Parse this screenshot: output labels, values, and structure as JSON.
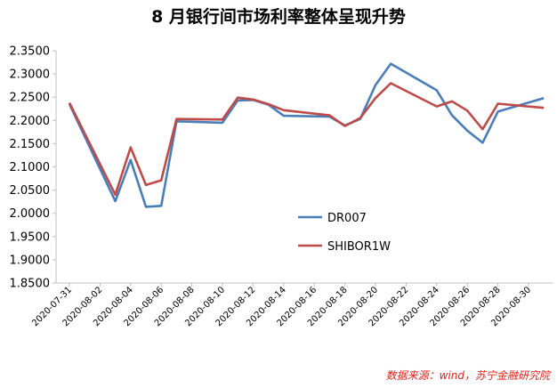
{
  "chart_data": {
    "type": "line",
    "title": "8 月银行间市场利率整体呈现升势",
    "source_note": "数据来源：wind，苏宁金融研究院",
    "x": [
      "2020-07-31",
      "2020-08-03",
      "2020-08-04",
      "2020-08-05",
      "2020-08-06",
      "2020-08-07",
      "2020-08-10",
      "2020-08-11",
      "2020-08-12",
      "2020-08-13",
      "2020-08-14",
      "2020-08-17",
      "2020-08-18",
      "2020-08-19",
      "2020-08-20",
      "2020-08-21",
      "2020-08-24",
      "2020-08-25",
      "2020-08-26",
      "2020-08-27",
      "2020-08-28",
      "2020-08-31"
    ],
    "xticks": [
      "2020-07-31",
      "2020-08-02",
      "2020-08-04",
      "2020-08-06",
      "2020-08-08",
      "2020-08-10",
      "2020-08-12",
      "2020-08-14",
      "2020-08-16",
      "2020-08-18",
      "2020-08-20",
      "2020-08-22",
      "2020-08-24",
      "2020-08-26",
      "2020-08-28",
      "2020-08-30"
    ],
    "ylim": [
      1.85,
      2.35
    ],
    "yticks": [
      "1.8500",
      "1.9000",
      "1.9500",
      "2.0000",
      "2.0500",
      "2.1000",
      "2.1500",
      "2.2000",
      "2.2500",
      "2.3000",
      "2.3500"
    ],
    "grid": false,
    "legend_position": "center-right",
    "series": [
      {
        "name": "DR007",
        "color": "#4a7ebb",
        "values": [
          2.235,
          2.026,
          2.115,
          2.014,
          2.016,
          2.198,
          2.195,
          2.243,
          2.244,
          2.234,
          2.21,
          2.208,
          2.189,
          2.203,
          2.276,
          2.322,
          2.265,
          2.211,
          2.178,
          2.152,
          2.219,
          2.248
        ]
      },
      {
        "name": "SHIBOR1W",
        "color": "#be4b48",
        "values": [
          2.238,
          2.04,
          2.142,
          2.061,
          2.071,
          2.203,
          2.202,
          2.249,
          2.245,
          2.235,
          2.222,
          2.211,
          2.188,
          2.205,
          2.248,
          2.28,
          2.23,
          2.241,
          2.221,
          2.181,
          2.236,
          2.227
        ]
      }
    ]
  }
}
